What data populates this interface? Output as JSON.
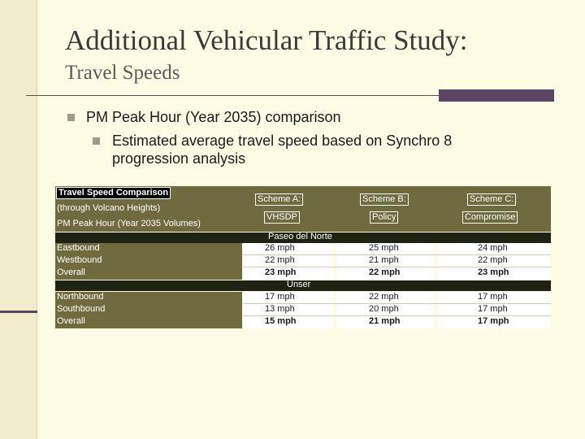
{
  "slide": {
    "title": "Additional Vehicular Traffic Study:",
    "subtitle": "Travel Speeds",
    "bullet1": "PM Peak Hour (Year 2035) comparison",
    "bullet2": "Estimated average travel speed based on Synchro 8 progression analysis"
  },
  "table": {
    "header_left": {
      "title": "Travel Speed Comparison",
      "line2": "(through Volcano Heights)",
      "line3": "PM Peak Hour (Year 2035 Volumes)"
    },
    "schemes": [
      {
        "name": "Scheme A:",
        "desc": "VHSDP"
      },
      {
        "name": "Scheme B:",
        "desc": "Policy"
      },
      {
        "name": "Scheme C:",
        "desc": "Compromise"
      }
    ],
    "sections": [
      {
        "name": "Paseo del Norte",
        "rows": [
          {
            "label": "Eastbound",
            "a": "26 mph",
            "b": "25 mph",
            "c": "24 mph"
          },
          {
            "label": "Westbound",
            "a": "22 mph",
            "b": "21 mph",
            "c": "22 mph"
          },
          {
            "label": "Overall",
            "a": "23 mph",
            "b": "22 mph",
            "c": "23 mph"
          }
        ]
      },
      {
        "name": "Unser",
        "rows": [
          {
            "label": "Northbound",
            "a": "17 mph",
            "b": "22 mph",
            "c": "17 mph"
          },
          {
            "label": "Southbound",
            "a": "13 mph",
            "b": "20 mph",
            "c": "17 mph"
          },
          {
            "label": "Overall",
            "a": "15 mph",
            "b": "21 mph",
            "c": "17 mph"
          }
        ]
      }
    ]
  },
  "colors": {
    "background": "#fdfbe3",
    "olive": "#6f6b3e",
    "section_bar": "#1f2314",
    "accent_purple": "#5c4560"
  }
}
